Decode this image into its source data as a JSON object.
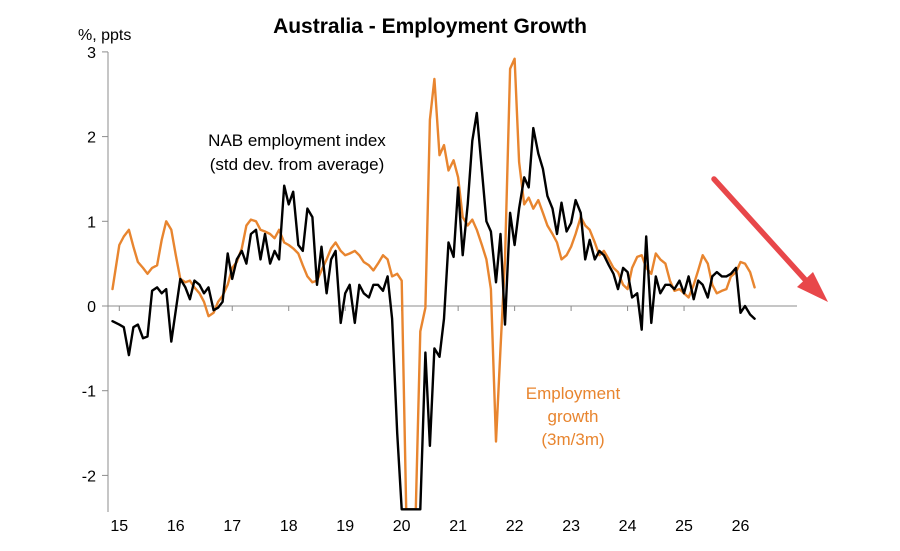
{
  "chart_data": {
    "type": "line",
    "title": "Australia - Employment Growth",
    "ylabel": "%, ppts",
    "xlabel": "",
    "ylim": [
      -2.4,
      3
    ],
    "xlim": [
      2014.8,
      2027.0
    ],
    "y_ticks": [
      3,
      2,
      1,
      0,
      -1,
      -2
    ],
    "x_ticks": [
      {
        "value": 2015.0,
        "label": "15"
      },
      {
        "value": 2016.0,
        "label": "16"
      },
      {
        "value": 2017.0,
        "label": "17"
      },
      {
        "value": 2018.0,
        "label": "18"
      },
      {
        "value": 2019.0,
        "label": "19"
      },
      {
        "value": 2020.0,
        "label": "20"
      },
      {
        "value": 2021.0,
        "label": "21"
      },
      {
        "value": 2022.0,
        "label": "22"
      },
      {
        "value": 2023.0,
        "label": "23"
      },
      {
        "value": 2024.0,
        "label": "24"
      },
      {
        "value": 2025.0,
        "label": "25"
      },
      {
        "value": 2026.0,
        "label": "26"
      }
    ],
    "grid": false,
    "legend": "none",
    "annotations": [
      {
        "lines": [
          "NAB employment index",
          "(std dev. from average)"
        ],
        "color": "#000000"
      },
      {
        "lines": [
          "Employment",
          "growth",
          "(3m/3m)"
        ],
        "color": "#E8852F"
      }
    ],
    "series": [
      {
        "name": "NAB employment index",
        "color": "#000000",
        "points": [
          [
            2014.88,
            -0.18
          ],
          [
            2015.0,
            -0.22
          ],
          [
            2015.08,
            -0.25
          ],
          [
            2015.17,
            -0.58
          ],
          [
            2015.25,
            -0.25
          ],
          [
            2015.33,
            -0.22
          ],
          [
            2015.42,
            -0.38
          ],
          [
            2015.5,
            -0.36
          ],
          [
            2015.58,
            0.18
          ],
          [
            2015.67,
            0.22
          ],
          [
            2015.75,
            0.15
          ],
          [
            2015.83,
            0.2
          ],
          [
            2015.92,
            -0.42
          ],
          [
            2016.0,
            -0.05
          ],
          [
            2016.08,
            0.32
          ],
          [
            2016.17,
            0.22
          ],
          [
            2016.25,
            0.08
          ],
          [
            2016.33,
            0.3
          ],
          [
            2016.42,
            0.25
          ],
          [
            2016.5,
            0.15
          ],
          [
            2016.58,
            0.22
          ],
          [
            2016.67,
            -0.05
          ],
          [
            2016.75,
            -0.02
          ],
          [
            2016.83,
            0.05
          ],
          [
            2016.92,
            0.62
          ],
          [
            2017.0,
            0.32
          ],
          [
            2017.08,
            0.55
          ],
          [
            2017.17,
            0.65
          ],
          [
            2017.25,
            0.5
          ],
          [
            2017.33,
            0.85
          ],
          [
            2017.42,
            0.9
          ],
          [
            2017.5,
            0.55
          ],
          [
            2017.58,
            0.85
          ],
          [
            2017.67,
            0.5
          ],
          [
            2017.75,
            0.65
          ],
          [
            2017.83,
            0.55
          ],
          [
            2017.92,
            1.42
          ],
          [
            2018.0,
            1.2
          ],
          [
            2018.08,
            1.35
          ],
          [
            2018.17,
            0.72
          ],
          [
            2018.25,
            0.65
          ],
          [
            2018.33,
            1.15
          ],
          [
            2018.42,
            1.05
          ],
          [
            2018.5,
            0.25
          ],
          [
            2018.58,
            0.7
          ],
          [
            2018.67,
            0.15
          ],
          [
            2018.75,
            0.55
          ],
          [
            2018.83,
            0.65
          ],
          [
            2018.92,
            -0.2
          ],
          [
            2019.0,
            0.15
          ],
          [
            2019.08,
            0.25
          ],
          [
            2019.17,
            -0.2
          ],
          [
            2019.25,
            0.25
          ],
          [
            2019.33,
            0.15
          ],
          [
            2019.42,
            0.1
          ],
          [
            2019.5,
            0.25
          ],
          [
            2019.58,
            0.25
          ],
          [
            2019.67,
            0.18
          ],
          [
            2019.75,
            0.35
          ],
          [
            2019.83,
            -0.15
          ],
          [
            2019.92,
            -1.5
          ],
          [
            2020.0,
            -2.4
          ],
          [
            2020.08,
            -2.4
          ],
          [
            2020.17,
            -2.4
          ],
          [
            2020.25,
            -2.4
          ],
          [
            2020.33,
            -2.4
          ],
          [
            2020.42,
            -0.55
          ],
          [
            2020.5,
            -1.65
          ],
          [
            2020.58,
            -0.5
          ],
          [
            2020.67,
            -0.6
          ],
          [
            2020.75,
            -0.15
          ],
          [
            2020.83,
            0.75
          ],
          [
            2020.92,
            0.58
          ],
          [
            2021.0,
            1.4
          ],
          [
            2021.08,
            0.6
          ],
          [
            2021.17,
            1.2
          ],
          [
            2021.25,
            1.95
          ],
          [
            2021.33,
            2.28
          ],
          [
            2021.42,
            1.6
          ],
          [
            2021.5,
            1.0
          ],
          [
            2021.58,
            0.88
          ],
          [
            2021.67,
            0.28
          ],
          [
            2021.75,
            0.85
          ],
          [
            2021.83,
            -0.22
          ],
          [
            2021.92,
            1.1
          ],
          [
            2022.0,
            0.72
          ],
          [
            2022.08,
            1.15
          ],
          [
            2022.17,
            1.52
          ],
          [
            2022.25,
            1.4
          ],
          [
            2022.33,
            2.1
          ],
          [
            2022.42,
            1.8
          ],
          [
            2022.5,
            1.62
          ],
          [
            2022.58,
            1.3
          ],
          [
            2022.67,
            1.15
          ],
          [
            2022.75,
            0.85
          ],
          [
            2022.83,
            1.22
          ],
          [
            2022.92,
            0.88
          ],
          [
            2023.0,
            0.98
          ],
          [
            2023.08,
            1.25
          ],
          [
            2023.17,
            1.1
          ],
          [
            2023.25,
            0.55
          ],
          [
            2023.33,
            0.78
          ],
          [
            2023.42,
            0.55
          ],
          [
            2023.5,
            0.65
          ],
          [
            2023.58,
            0.6
          ],
          [
            2023.67,
            0.48
          ],
          [
            2023.75,
            0.38
          ],
          [
            2023.83,
            0.2
          ],
          [
            2023.92,
            0.45
          ],
          [
            2024.0,
            0.4
          ],
          [
            2024.08,
            0.1
          ],
          [
            2024.17,
            0.15
          ],
          [
            2024.25,
            -0.28
          ],
          [
            2024.33,
            0.82
          ],
          [
            2024.42,
            -0.2
          ],
          [
            2024.5,
            0.35
          ],
          [
            2024.58,
            0.15
          ],
          [
            2024.67,
            0.25
          ],
          [
            2024.75,
            0.25
          ],
          [
            2024.83,
            0.2
          ],
          [
            2024.92,
            0.3
          ],
          [
            2025.0,
            0.15
          ],
          [
            2025.08,
            0.35
          ],
          [
            2025.17,
            0.08
          ],
          [
            2025.25,
            0.3
          ],
          [
            2025.33,
            0.25
          ],
          [
            2025.42,
            0.1
          ],
          [
            2025.5,
            0.35
          ],
          [
            2025.58,
            0.4
          ],
          [
            2025.67,
            0.35
          ],
          [
            2025.75,
            0.35
          ],
          [
            2025.83,
            0.38
          ],
          [
            2025.92,
            0.45
          ],
          [
            2026.0,
            -0.08
          ],
          [
            2026.08,
            0.0
          ],
          [
            2026.17,
            -0.1
          ],
          [
            2026.25,
            -0.15
          ]
        ]
      },
      {
        "name": "Employment growth (3m/3m)",
        "color": "#E8852F",
        "points": [
          [
            2014.88,
            0.2
          ],
          [
            2015.0,
            0.72
          ],
          [
            2015.08,
            0.82
          ],
          [
            2015.17,
            0.9
          ],
          [
            2015.25,
            0.7
          ],
          [
            2015.33,
            0.52
          ],
          [
            2015.42,
            0.45
          ],
          [
            2015.5,
            0.38
          ],
          [
            2015.58,
            0.45
          ],
          [
            2015.67,
            0.48
          ],
          [
            2015.75,
            0.78
          ],
          [
            2015.83,
            1.0
          ],
          [
            2015.92,
            0.9
          ],
          [
            2016.0,
            0.6
          ],
          [
            2016.08,
            0.32
          ],
          [
            2016.17,
            0.28
          ],
          [
            2016.25,
            0.3
          ],
          [
            2016.33,
            0.22
          ],
          [
            2016.42,
            0.15
          ],
          [
            2016.5,
            0.05
          ],
          [
            2016.58,
            -0.12
          ],
          [
            2016.67,
            -0.08
          ],
          [
            2016.75,
            0.05
          ],
          [
            2016.83,
            0.12
          ],
          [
            2016.92,
            0.25
          ],
          [
            2017.0,
            0.45
          ],
          [
            2017.08,
            0.52
          ],
          [
            2017.17,
            0.68
          ],
          [
            2017.25,
            0.95
          ],
          [
            2017.33,
            1.02
          ],
          [
            2017.42,
            1.0
          ],
          [
            2017.5,
            0.9
          ],
          [
            2017.58,
            0.88
          ],
          [
            2017.67,
            0.85
          ],
          [
            2017.75,
            0.8
          ],
          [
            2017.83,
            0.9
          ],
          [
            2017.92,
            0.75
          ],
          [
            2018.0,
            0.72
          ],
          [
            2018.08,
            0.68
          ],
          [
            2018.17,
            0.62
          ],
          [
            2018.25,
            0.48
          ],
          [
            2018.33,
            0.35
          ],
          [
            2018.42,
            0.28
          ],
          [
            2018.5,
            0.3
          ],
          [
            2018.58,
            0.42
          ],
          [
            2018.67,
            0.55
          ],
          [
            2018.75,
            0.68
          ],
          [
            2018.83,
            0.75
          ],
          [
            2018.92,
            0.65
          ],
          [
            2019.0,
            0.6
          ],
          [
            2019.08,
            0.62
          ],
          [
            2019.17,
            0.65
          ],
          [
            2019.25,
            0.6
          ],
          [
            2019.33,
            0.52
          ],
          [
            2019.42,
            0.48
          ],
          [
            2019.5,
            0.42
          ],
          [
            2019.58,
            0.5
          ],
          [
            2019.67,
            0.6
          ],
          [
            2019.75,
            0.55
          ],
          [
            2019.83,
            0.35
          ],
          [
            2019.92,
            0.38
          ],
          [
            2020.0,
            0.3
          ],
          [
            2020.08,
            -2.4
          ],
          [
            2020.17,
            -2.4
          ],
          [
            2020.25,
            -2.4
          ],
          [
            2020.33,
            -0.3
          ],
          [
            2020.42,
            -0.02
          ],
          [
            2020.5,
            2.2
          ],
          [
            2020.58,
            2.68
          ],
          [
            2020.67,
            1.78
          ],
          [
            2020.75,
            1.9
          ],
          [
            2020.83,
            1.6
          ],
          [
            2020.92,
            1.72
          ],
          [
            2021.0,
            1.52
          ],
          [
            2021.08,
            1.05
          ],
          [
            2021.17,
            0.95
          ],
          [
            2021.25,
            1.02
          ],
          [
            2021.33,
            0.9
          ],
          [
            2021.42,
            0.72
          ],
          [
            2021.5,
            0.55
          ],
          [
            2021.58,
            0.2
          ],
          [
            2021.67,
            -1.6
          ],
          [
            2021.75,
            -0.5
          ],
          [
            2021.83,
            0.55
          ],
          [
            2021.92,
            2.8
          ],
          [
            2022.0,
            2.92
          ],
          [
            2022.08,
            1.7
          ],
          [
            2022.17,
            1.2
          ],
          [
            2022.25,
            1.28
          ],
          [
            2022.33,
            1.15
          ],
          [
            2022.42,
            1.25
          ],
          [
            2022.5,
            1.1
          ],
          [
            2022.58,
            0.95
          ],
          [
            2022.67,
            0.85
          ],
          [
            2022.75,
            0.75
          ],
          [
            2022.83,
            0.55
          ],
          [
            2022.92,
            0.6
          ],
          [
            2023.0,
            0.7
          ],
          [
            2023.08,
            0.85
          ],
          [
            2023.17,
            1.05
          ],
          [
            2023.25,
            0.95
          ],
          [
            2023.33,
            0.9
          ],
          [
            2023.42,
            0.75
          ],
          [
            2023.5,
            0.6
          ],
          [
            2023.58,
            0.65
          ],
          [
            2023.67,
            0.55
          ],
          [
            2023.75,
            0.45
          ],
          [
            2023.83,
            0.4
          ],
          [
            2023.92,
            0.25
          ],
          [
            2024.0,
            0.2
          ],
          [
            2024.08,
            0.45
          ],
          [
            2024.17,
            0.58
          ],
          [
            2024.25,
            0.6
          ],
          [
            2024.33,
            0.45
          ],
          [
            2024.42,
            0.38
          ],
          [
            2024.5,
            0.62
          ],
          [
            2024.58,
            0.55
          ],
          [
            2024.67,
            0.5
          ],
          [
            2024.75,
            0.3
          ],
          [
            2024.83,
            0.18
          ],
          [
            2024.92,
            0.2
          ],
          [
            2025.0,
            0.15
          ],
          [
            2025.08,
            0.1
          ],
          [
            2025.17,
            0.25
          ],
          [
            2025.25,
            0.42
          ],
          [
            2025.33,
            0.6
          ],
          [
            2025.42,
            0.5
          ],
          [
            2025.5,
            0.25
          ],
          [
            2025.58,
            0.15
          ],
          [
            2025.67,
            0.18
          ],
          [
            2025.75,
            0.2
          ],
          [
            2025.83,
            0.35
          ],
          [
            2025.92,
            0.4
          ],
          [
            2026.0,
            0.52
          ],
          [
            2026.08,
            0.5
          ],
          [
            2026.17,
            0.4
          ],
          [
            2026.25,
            0.22
          ]
        ]
      }
    ]
  },
  "arrow_color": "#E8474A"
}
